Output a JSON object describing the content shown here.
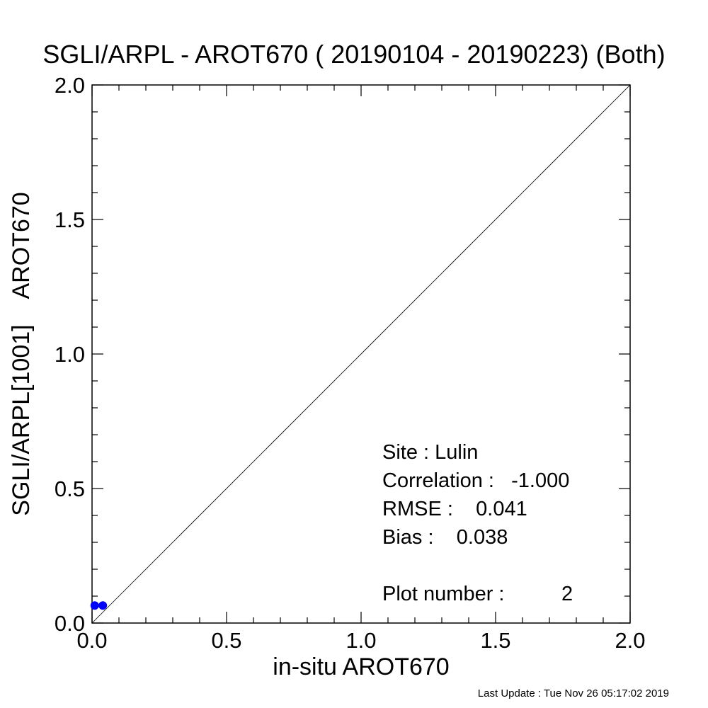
{
  "chart_data": {
    "type": "scatter",
    "title": "SGLI/ARPL - AROT670 ( 20190104 - 20190223) (Both)",
    "xlabel": "in-situ AROT670",
    "ylabel": "SGLI/ARPL[1001]    AROT670",
    "xlim": [
      0.0,
      2.0
    ],
    "ylim": [
      0.0,
      2.0
    ],
    "xticks": [
      "0.0",
      "0.5",
      "1.0",
      "1.5",
      "2.0"
    ],
    "yticks": [
      "0.0",
      "0.5",
      "1.0",
      "1.5",
      "2.0"
    ],
    "grid": false,
    "reference_line": "y = x",
    "points": [
      {
        "x": 0.01,
        "y": 0.065
      },
      {
        "x": 0.04,
        "y": 0.065
      }
    ],
    "point_color": "#0000ff"
  },
  "stats": {
    "site": "Site : Lulin",
    "correlation": "Correlation :   -1.000",
    "rmse": "RMSE :    0.041",
    "bias": "Bias :    0.038",
    "plot_number": "Plot number :          2"
  },
  "footer": "Last Update : Tue Nov 26 05:17:02 2019"
}
